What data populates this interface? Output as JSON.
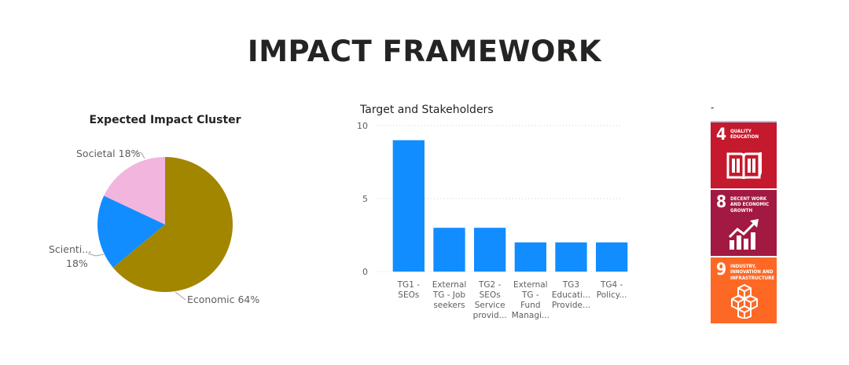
{
  "page": {
    "title": "IMPACT FRAMEWORK"
  },
  "chart_data": [
    {
      "type": "pie",
      "title": "Expected Impact Cluster",
      "slices": [
        {
          "label": "Economic",
          "display": "Economic 64%",
          "value": 64,
          "color": "#a38600"
        },
        {
          "label": "Scientific",
          "display": "Scienti...",
          "display2": "18%",
          "value": 18,
          "color": "#118dff"
        },
        {
          "label": "Societal",
          "display": "Societal 18%",
          "value": 18,
          "color": "#f2b5dd"
        }
      ]
    },
    {
      "type": "bar",
      "title": "Target and Stakeholders",
      "ylim": [
        0,
        10
      ],
      "yticks": [
        0,
        5,
        10
      ],
      "color": "#118dff",
      "categories": [
        [
          "TG1 -",
          "SEOs"
        ],
        [
          "External",
          "TG - Job",
          "seekers"
        ],
        [
          "TG2 -",
          "SEOs",
          "Service",
          "provid..."
        ],
        [
          "External",
          "TG -",
          "Fund",
          "Managi..."
        ],
        [
          "TG3",
          "Educati...",
          "Provide..."
        ],
        [
          "TG4 -",
          "Policy..."
        ]
      ],
      "values": [
        9,
        3,
        3,
        2,
        2,
        2
      ]
    }
  ],
  "sdg": {
    "heading": "-",
    "goals": [
      {
        "number": "4",
        "name": "Quality Education",
        "color": "#c5192d",
        "icon": "book-pencil-icon"
      },
      {
        "number": "8",
        "name": "Decent Work and Economic Growth",
        "color": "#a21942",
        "icon": "growth-chart-icon"
      },
      {
        "number": "9",
        "name": "Industry, Innovation and Infrastructure",
        "color": "#fd6925",
        "icon": "cubes-icon"
      }
    ]
  }
}
